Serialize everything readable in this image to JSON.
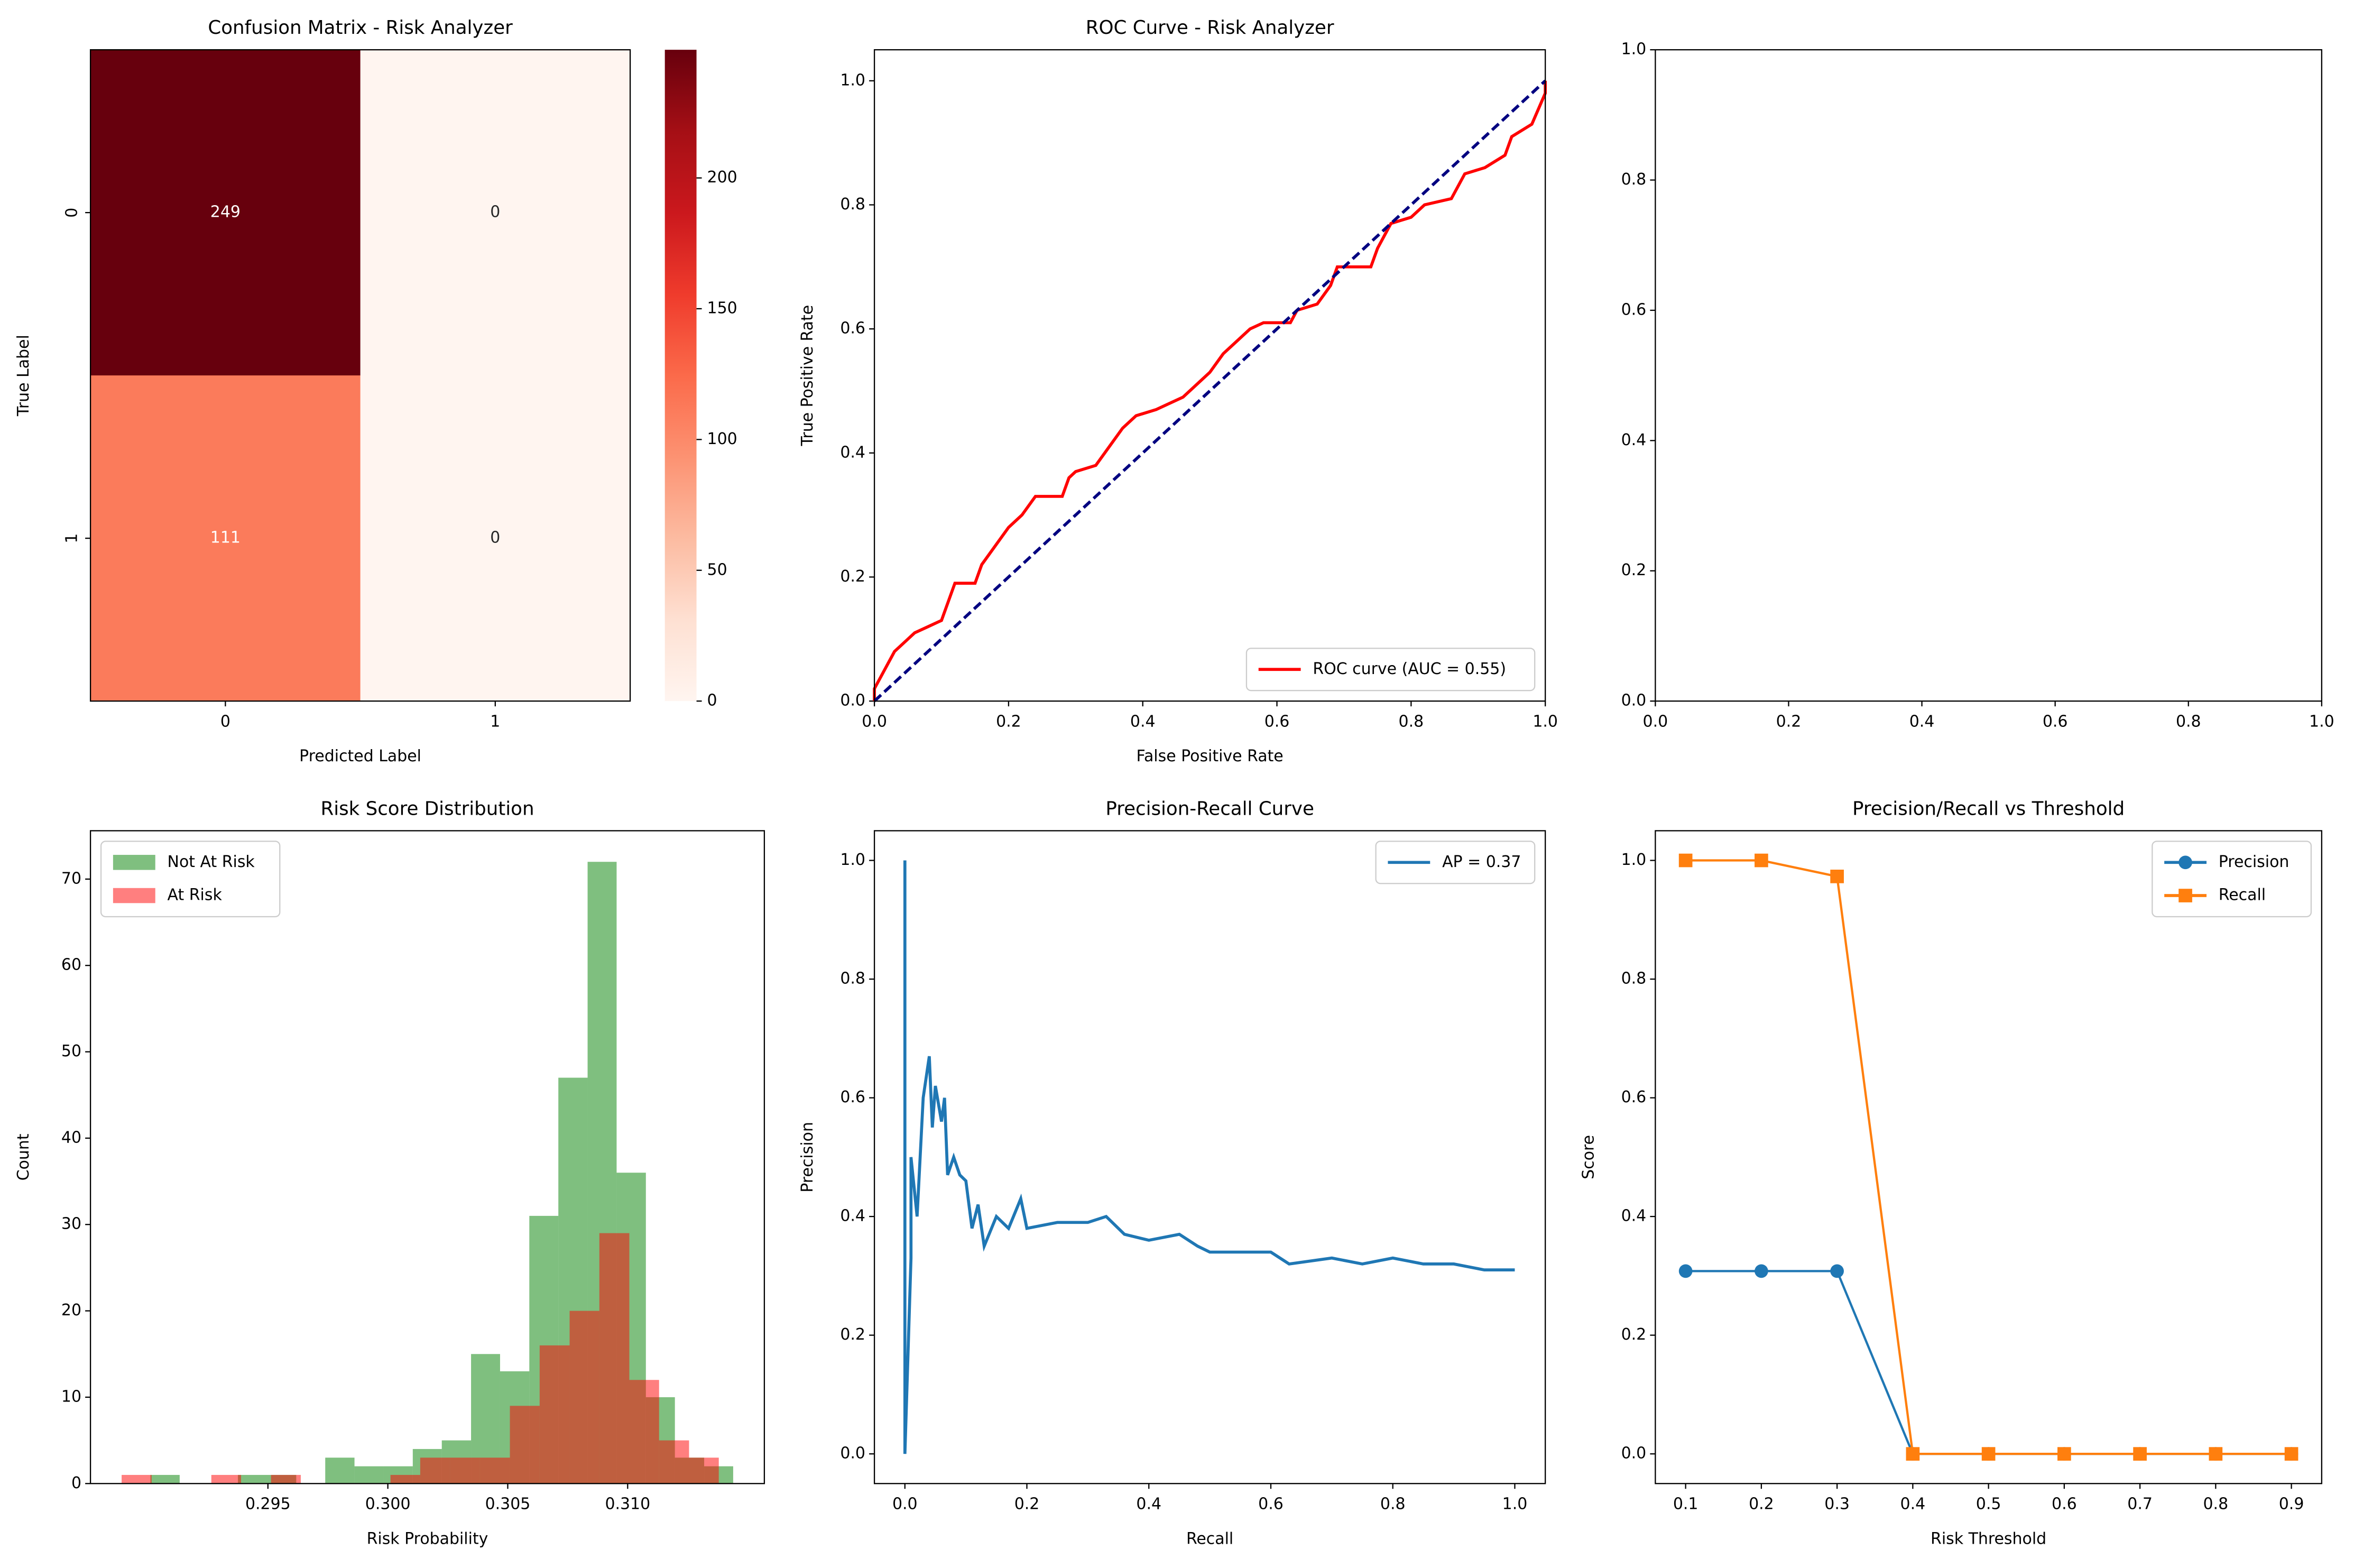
{
  "chart_data": [
    {
      "type": "heatmap",
      "title": "Confusion Matrix - Risk Analyzer",
      "x_label": "Predicted Label",
      "y_label": "True Label",
      "x_categories": [
        "0",
        "1"
      ],
      "y_categories": [
        "0",
        "1"
      ],
      "values": [
        [
          249,
          0
        ],
        [
          111,
          0
        ]
      ],
      "colormap": [
        "#fff5f0",
        "#fee0d2",
        "#fcbba1",
        "#fc9272",
        "#fb6a4a",
        "#ef3b2c",
        "#cb181d",
        "#a50f15",
        "#67000d"
      ],
      "clim": [
        0,
        249
      ],
      "colorbar_ticks": [
        0,
        50,
        100,
        150,
        200
      ]
    },
    {
      "type": "line",
      "title": "ROC Curve - Risk Analyzer",
      "x_label": "False Positive Rate",
      "y_label": "True Positive Rate",
      "xlim": [
        0,
        1
      ],
      "ylim": [
        0,
        1.05
      ],
      "xticks": [
        {
          "value": 0,
          "label": "0.0"
        },
        0.2,
        0.4,
        0.6,
        0.8,
        {
          "value": 1,
          "label": "1.0"
        }
      ],
      "yticks": [
        {
          "value": 0,
          "label": "0.0"
        },
        0.2,
        0.4,
        0.6,
        0.8,
        {
          "value": 1,
          "label": "1.0"
        }
      ],
      "legend": "lower right",
      "series": [
        {
          "name": "ROC curve (AUC = 0.55)",
          "color": "#ff0000",
          "x": [
            0,
            0,
            0.01,
            0.02,
            0.03,
            0.04,
            0.05,
            0.06,
            0.08,
            0.1,
            0.11,
            0.12,
            0.15,
            0.16,
            0.18,
            0.2,
            0.22,
            0.24,
            0.28,
            0.29,
            0.3,
            0.33,
            0.35,
            0.37,
            0.39,
            0.42,
            0.46,
            0.48,
            0.5,
            0.52,
            0.54,
            0.56,
            0.58,
            0.62,
            0.63,
            0.66,
            0.68,
            0.69,
            0.74,
            0.75,
            0.77,
            0.8,
            0.82,
            0.86,
            0.88,
            0.91,
            0.94,
            0.95,
            0.98,
            1,
            1
          ],
          "values": [
            0,
            0.02,
            0.04,
            0.06,
            0.08,
            0.09,
            0.1,
            0.11,
            0.12,
            0.13,
            0.16,
            0.19,
            0.19,
            0.22,
            0.25,
            0.28,
            0.3,
            0.33,
            0.33,
            0.36,
            0.37,
            0.38,
            0.41,
            0.44,
            0.46,
            0.47,
            0.49,
            0.51,
            0.53,
            0.56,
            0.58,
            0.6,
            0.61,
            0.61,
            0.63,
            0.64,
            0.67,
            0.7,
            0.7,
            0.73,
            0.77,
            0.78,
            0.8,
            0.81,
            0.85,
            0.86,
            0.88,
            0.91,
            0.93,
            0.98,
            1
          ]
        },
        {
          "color": "#000080",
          "dash": true,
          "x": [
            0,
            1
          ],
          "values": [
            0,
            1
          ]
        }
      ]
    },
    {
      "type": "axes",
      "xlim": [
        0,
        1
      ],
      "ylim": [
        0,
        1
      ],
      "xticks": [
        {
          "value": 0,
          "label": "0.0"
        },
        0.2,
        0.4,
        0.6,
        0.8,
        {
          "value": 1,
          "label": "1.0"
        }
      ],
      "yticks": [
        {
          "value": 0,
          "label": "0.0"
        },
        0.2,
        0.4,
        0.6,
        0.8,
        {
          "value": 1,
          "label": "1.0"
        }
      ]
    },
    {
      "type": "histogram",
      "title": "Risk Score Distribution",
      "x_label": "Risk Probability",
      "y_label": "Count",
      "xlim": [
        0.2876,
        0.3157
      ],
      "ylim": [
        0,
        75.6
      ],
      "xticks": [
        0.295,
        {
          "value": 0.3,
          "label": "0.300"
        },
        0.305,
        {
          "value": 0.31,
          "label": "0.310"
        }
      ],
      "yticks": [
        0,
        10,
        20,
        30,
        40,
        50,
        60,
        70
      ],
      "legend": "upper left",
      "series": [
        {
          "name": "Not At Risk",
          "color": "#008000",
          "alpha": 0.5,
          "bins": [
            0.2901,
            0.29132,
            0.29253,
            0.29375,
            0.29496,
            0.29618,
            0.29739,
            0.29861,
            0.29982,
            0.30104,
            0.30225,
            0.30347,
            0.30468,
            0.3059,
            0.30711,
            0.30833,
            0.30954,
            0.31076,
            0.31197,
            0.31319,
            0.3144
          ],
          "values": [
            1,
            0,
            0,
            1,
            1,
            0,
            3,
            2,
            2,
            4,
            5,
            15,
            13,
            31,
            47,
            72,
            36,
            10,
            3,
            2
          ]
        },
        {
          "name": "At Risk",
          "color": "#ff0000",
          "alpha": 0.5,
          "bins": [
            0.2889,
            0.29015,
            0.29139,
            0.29264,
            0.29388,
            0.29513,
            0.29637,
            0.29762,
            0.29886,
            0.30011,
            0.30135,
            0.3026,
            0.30384,
            0.30509,
            0.30633,
            0.30758,
            0.30882,
            0.31007,
            0.31131,
            0.31256,
            0.3138
          ],
          "values": [
            1,
            0,
            0,
            1,
            0,
            1,
            0,
            0,
            0,
            1,
            3,
            3,
            3,
            9,
            16,
            20,
            29,
            12,
            5,
            3
          ]
        }
      ]
    },
    {
      "type": "line",
      "title": "Precision-Recall Curve",
      "x_label": "Recall",
      "y_label": "Precision",
      "xlim": [
        -0.05,
        1.05
      ],
      "ylim": [
        -0.05,
        1.05
      ],
      "xticks": [
        {
          "value": 0,
          "label": "0.0"
        },
        0.2,
        0.4,
        0.6,
        0.8,
        {
          "value": 1,
          "label": "1.0"
        }
      ],
      "yticks": [
        {
          "value": 0,
          "label": "0.0"
        },
        0.2,
        0.4,
        0.6,
        0.8,
        {
          "value": 1,
          "label": "1.0"
        }
      ],
      "legend": "upper right",
      "series": [
        {
          "name": "AP = 0.37",
          "color": "#1f77b4",
          "x": [
            0,
            0,
            0.01,
            0.01,
            0.02,
            0.03,
            0.04,
            0.045,
            0.05,
            0.06,
            0.065,
            0.07,
            0.08,
            0.09,
            0.1,
            0.11,
            0.12,
            0.13,
            0.15,
            0.17,
            0.19,
            0.2,
            0.25,
            0.3,
            0.33,
            0.36,
            0.4,
            0.45,
            0.48,
            0.5,
            0.55,
            0.6,
            0.63,
            0.7,
            0.75,
            0.8,
            0.85,
            0.9,
            0.95,
            1
          ],
          "values": [
            1,
            0,
            0.33,
            0.5,
            0.4,
            0.6,
            0.67,
            0.55,
            0.62,
            0.56,
            0.6,
            0.47,
            0.5,
            0.47,
            0.46,
            0.38,
            0.42,
            0.35,
            0.4,
            0.38,
            0.43,
            0.38,
            0.39,
            0.39,
            0.4,
            0.37,
            0.36,
            0.37,
            0.35,
            0.34,
            0.34,
            0.34,
            0.32,
            0.33,
            0.32,
            0.33,
            0.32,
            0.32,
            0.31,
            0.31
          ]
        }
      ]
    },
    {
      "type": "line",
      "title": "Precision/Recall vs Threshold",
      "x_label": "Risk Threshold",
      "y_label": "Score",
      "xlim": [
        0.06,
        0.94
      ],
      "ylim": [
        -0.05,
        1.05
      ],
      "xticks": [
        0.1,
        0.2,
        0.3,
        0.4,
        0.5,
        0.6,
        0.7,
        0.8,
        0.9
      ],
      "yticks": [
        {
          "value": 0,
          "label": "0.0"
        },
        0.2,
        0.4,
        0.6,
        0.8,
        {
          "value": 1,
          "label": "1.0"
        }
      ],
      "legend": "upper right",
      "x": [
        0.1,
        0.2,
        0.3,
        0.4,
        0.5,
        0.6,
        0.7,
        0.8,
        0.9
      ],
      "series": [
        {
          "name": "Precision",
          "color": "#1f77b4",
          "marker": "o",
          "values": [
            0.308,
            0.308,
            0.308,
            0,
            0,
            0,
            0,
            0,
            0
          ]
        },
        {
          "name": "Recall",
          "color": "#ff7f0e",
          "marker": "s",
          "values": [
            1,
            1,
            0.973,
            0,
            0,
            0,
            0,
            0,
            0
          ]
        }
      ]
    }
  ]
}
